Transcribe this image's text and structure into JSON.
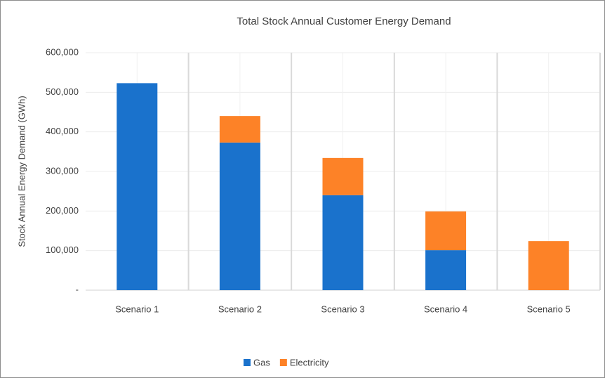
{
  "chart_data": {
    "type": "stacked_bar",
    "title": "Total Stock Annual Customer Energy Demand",
    "y_label": "Stock Annual Energy Demand (GWh)",
    "categories": [
      "Scenario 1",
      "Scenario 2",
      "Scenario 3",
      "Scenario 4",
      "Scenario 5"
    ],
    "series": [
      {
        "name": "Gas",
        "color": "#1a72cc",
        "values": [
          523000,
          373000,
          240000,
          101000,
          0
        ]
      },
      {
        "name": "Electricity",
        "color": "#fd8227",
        "values": [
          0,
          67000,
          94000,
          98000,
          124000
        ]
      }
    ],
    "ylim": [
      0,
      600000
    ],
    "yticks": [
      {
        "value": 0,
        "label": "-"
      },
      {
        "value": 100000,
        "label": "100,000"
      },
      {
        "value": 200000,
        "label": "200,000"
      },
      {
        "value": 300000,
        "label": "300,000"
      },
      {
        "value": 400000,
        "label": "400,000"
      },
      {
        "value": 500000,
        "label": "500,000"
      },
      {
        "value": 600000,
        "label": "600,000"
      }
    ],
    "grid": true,
    "legend": "bottom"
  }
}
